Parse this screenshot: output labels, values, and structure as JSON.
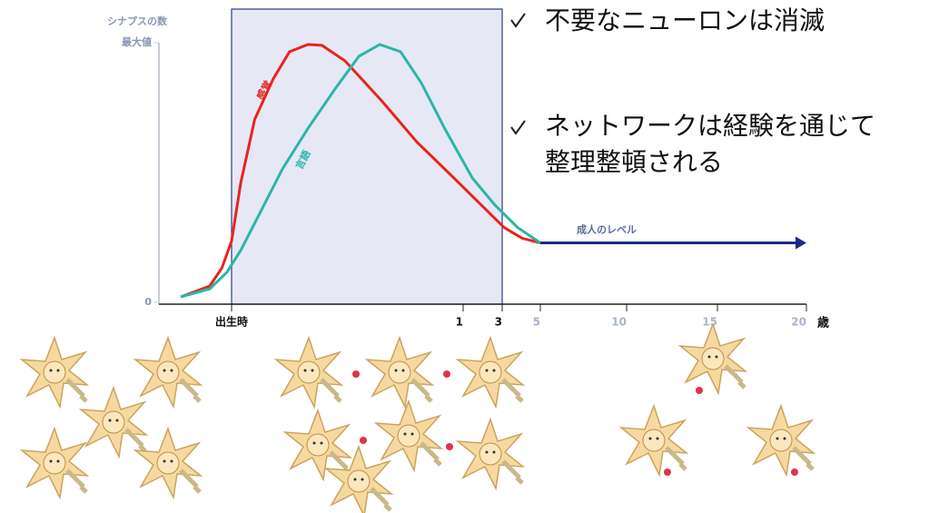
{
  "chart_data": {
    "type": "line",
    "y_label": "シナプスの数",
    "x_unit": "歳",
    "xlim": [
      -0.3,
      20
    ],
    "xticks": [
      {
        "value": 0,
        "label": "出生時"
      },
      1,
      3,
      5,
      10,
      15,
      20
    ],
    "ylim": [
      0,
      100
    ],
    "yticks": [
      0,
      {
        "value": 100,
        "label": "最大値"
      }
    ],
    "shade": [
      0,
      3
    ],
    "series": [
      {
        "name": "感覚",
        "color": "#e8241c",
        "x": [
          -0.21,
          -0.09,
          -0.04,
          0,
          0.04,
          0.1,
          0.18,
          0.25,
          0.33,
          0.39,
          0.49,
          0.65,
          0.8,
          0.96,
          1.93,
          3.1,
          4.05,
          5
        ],
        "values": [
          2.1,
          6.3,
          13.2,
          23.6,
          46.2,
          70.5,
          86.1,
          96.5,
          99.3,
          99,
          93,
          77.4,
          61.8,
          47.9,
          37.5,
          28.8,
          24.7,
          22.9
        ]
      },
      {
        "name": "言語",
        "color": "#2cb5a8",
        "x": [
          -0.21,
          -0.09,
          -0.02,
          0.04,
          0.12,
          0.22,
          0.33,
          0.45,
          0.55,
          0.64,
          0.73,
          0.82,
          0.92,
          1.47,
          2.63,
          3.81,
          5
        ],
        "values": [
          2.1,
          5.2,
          11.5,
          20.1,
          34,
          51.4,
          67,
          82.6,
          94.8,
          99.3,
          96.5,
          84.4,
          67,
          47.9,
          37.5,
          28.8,
          22.9
        ]
      }
    ],
    "adult_level": {
      "label": "成人のレベル",
      "value": 22.9,
      "from": 5,
      "to": 20,
      "color": "#1a2a8c"
    }
  },
  "bullets": [
    [
      "不要なニューロンは消滅"
    ],
    [
      "ネットワークは経験を通じて",
      "整理整頓される"
    ]
  ]
}
